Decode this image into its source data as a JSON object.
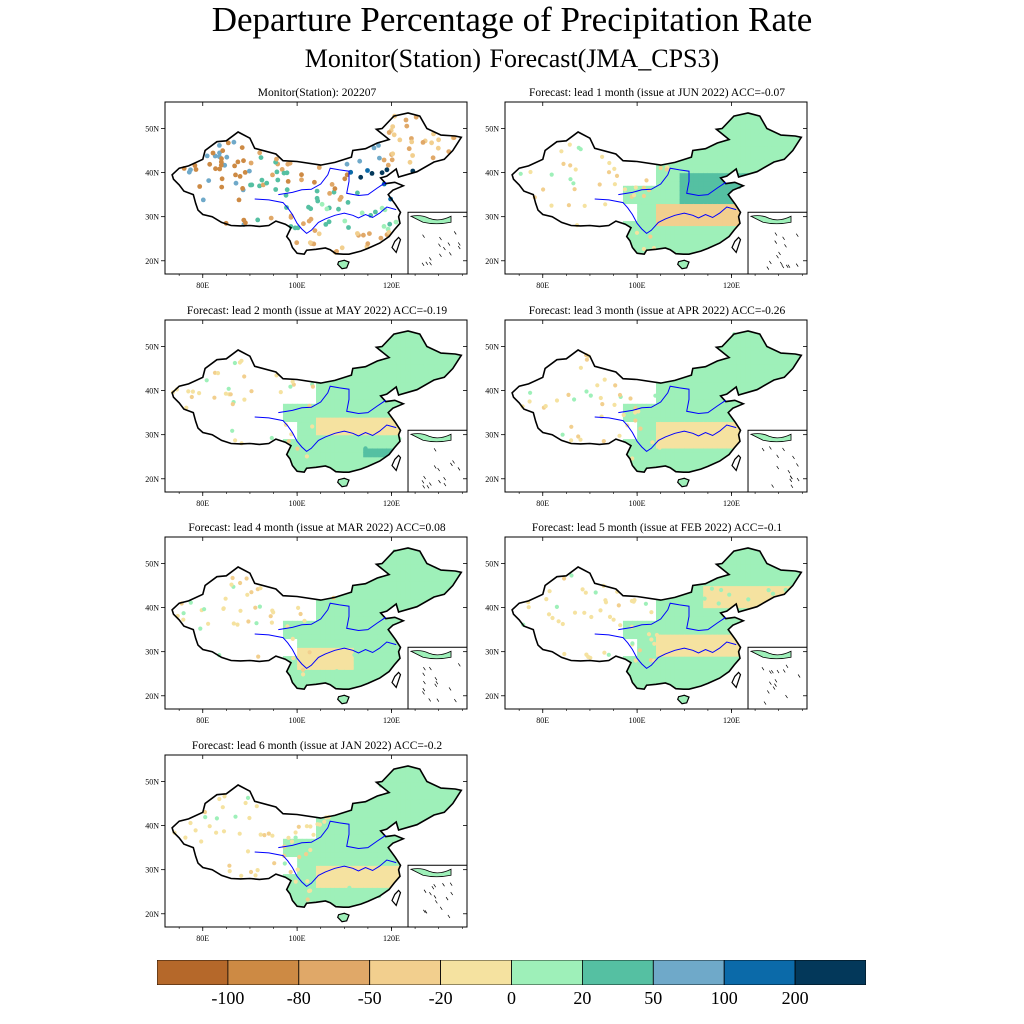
{
  "title": "Departure Percentage of Precipitation Rate",
  "subtitle": "Monitor(Station)   Forecast(JMA_CPS3)",
  "map_axes": {
    "lon_labels": [
      "80E",
      "100E",
      "120E"
    ],
    "lat_labels": [
      "50N",
      "40N",
      "30N",
      "20N"
    ]
  },
  "panels": [
    {
      "title": "Monitor(Station): 202207",
      "pattern": "monitor"
    },
    {
      "title": "Forecast: lead 1 month (issue at JUN 2022) ACC=-0.07",
      "pattern": "lead1"
    },
    {
      "title": "Forecast: lead 2 month (issue at MAY 2022) ACC=-0.19",
      "pattern": "lead2"
    },
    {
      "title": "Forecast: lead 3 month (issue at APR 2022) ACC=-0.26",
      "pattern": "lead3"
    },
    {
      "title": "Forecast: lead 4 month (issue at MAR 2022) ACC=0.08",
      "pattern": "lead4"
    },
    {
      "title": "Forecast: lead 5 month (issue at FEB 2022) ACC=-0.1",
      "pattern": "lead5"
    },
    {
      "title": "Forecast: lead 6 month (issue at JAN 2022) ACC=-0.2",
      "pattern": "lead6"
    }
  ],
  "colorbar": {
    "colors": [
      "#b5682a",
      "#cd8a44",
      "#e0a868",
      "#f2cf8e",
      "#f5e2a0",
      "#9ef0b9",
      "#55c0a2",
      "#6fa9c9",
      "#0b6aa9",
      "#03385a"
    ],
    "labels": [
      "-100",
      "-80",
      "-50",
      "-20",
      "0",
      "20",
      "50",
      "100",
      "200"
    ]
  }
}
